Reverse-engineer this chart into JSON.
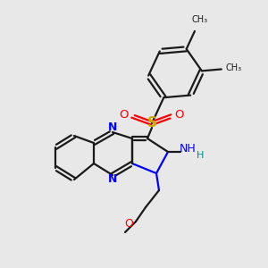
{
  "background_color": "#e8e8e8",
  "bond_color": "#1a1a1a",
  "n_color": "#0000ff",
  "o_color": "#ff0000",
  "s_color": "#ccaa00",
  "nh2_h_color": "#008b8b",
  "methyl_label": "CH₃",
  "o_label": "O",
  "s_label": "S",
  "n_label": "N",
  "nh_label": "NH",
  "h_label": "H",
  "o_chain_label": "O"
}
